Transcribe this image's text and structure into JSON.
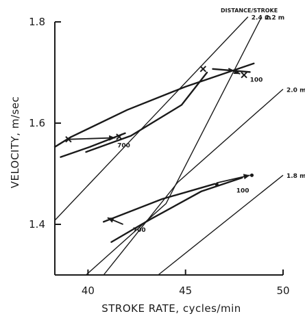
{
  "chart_data": {
    "type": "line",
    "xlabel": "STROKE RATE, cycles/min",
    "ylabel": "VELOCITY, m/sec",
    "xlim": [
      38.3,
      50
    ],
    "ylim": [
      1.3,
      1.8
    ],
    "x_ticks": [
      40,
      45,
      50
    ],
    "x_tick_labels": [
      "40",
      "45",
      "50"
    ],
    "y_ticks": [
      1.4,
      1.6,
      1.8
    ],
    "y_tick_labels": [
      "1.4",
      "1.6",
      "1.8"
    ],
    "legend_title": "DISTANCE/STROKE",
    "iso_lines": [
      {
        "label": "2.4 m",
        "points": [
          [
            38.3,
            1.408
          ],
          [
            43.1,
            1.603
          ],
          [
            48.2,
            1.81
          ]
        ]
      },
      {
        "label": "2.2 m",
        "points": [
          [
            39.9,
            1.3
          ],
          [
            44.0,
            1.441
          ],
          [
            48.9,
            1.81
          ]
        ]
      },
      {
        "label": "2.0 m",
        "points": [
          [
            40.8,
            1.3
          ],
          [
            44.6,
            1.483
          ],
          [
            50.0,
            1.667
          ]
        ]
      },
      {
        "label": "1.8 m",
        "points": [
          [
            43.6,
            1.3
          ],
          [
            50.0,
            1.497
          ]
        ]
      }
    ],
    "series": [
      {
        "points": [
          [
            38.3,
            1.553
          ],
          [
            39.1,
            1.572
          ],
          [
            42.0,
            1.626
          ],
          [
            45.0,
            1.672
          ],
          [
            48.5,
            1.718
          ]
        ]
      },
      {
        "points": [
          [
            38.6,
            1.533
          ],
          [
            40.1,
            1.553
          ],
          [
            41.9,
            1.58
          ]
        ]
      },
      {
        "points": [
          [
            39.9,
            1.543
          ],
          [
            42.2,
            1.575
          ],
          [
            44.8,
            1.636
          ],
          [
            46.1,
            1.7
          ]
        ]
      },
      {
        "points": [
          [
            46.4,
            1.707
          ],
          [
            48.3,
            1.701
          ]
        ]
      },
      {
        "points": [
          [
            40.8,
            1.405
          ],
          [
            43.8,
            1.45
          ],
          [
            46.5,
            1.48
          ]
        ]
      },
      {
        "points": [
          [
            41.2,
            1.365
          ],
          [
            43.2,
            1.41
          ],
          [
            45.8,
            1.465
          ],
          [
            47.9,
            1.492
          ]
        ]
      }
    ],
    "markers": [
      {
        "x": 39.0,
        "y": 1.568,
        "style": "x"
      },
      {
        "x": 41.6,
        "y": 1.573,
        "style": "x"
      },
      {
        "x": 45.9,
        "y": 1.707,
        "style": "x"
      },
      {
        "x": 48.0,
        "y": 1.695,
        "style": "x"
      },
      {
        "x": 46.6,
        "y": 1.479,
        "style": "dot"
      },
      {
        "x": 48.4,
        "y": 1.497,
        "style": "dot"
      }
    ],
    "arrows": [
      {
        "from": [
          39.0,
          1.568
        ],
        "to": [
          41.4,
          1.571
        ]
      },
      {
        "from": [
          46.6,
          1.482
        ],
        "to": [
          48.3,
          1.497
        ]
      },
      {
        "from": [
          47.2,
          1.708
        ],
        "to": [
          47.8,
          1.697
        ]
      },
      {
        "from": [
          41.8,
          1.4
        ],
        "to": [
          41.0,
          1.413
        ]
      }
    ],
    "annotations": [
      {
        "text": "700",
        "x": 41.5,
        "y": 1.552
      },
      {
        "text": "100",
        "x": 48.3,
        "y": 1.682
      },
      {
        "text": "100",
        "x": 47.6,
        "y": 1.463
      },
      {
        "text": "700",
        "x": 42.3,
        "y": 1.385
      }
    ]
  }
}
